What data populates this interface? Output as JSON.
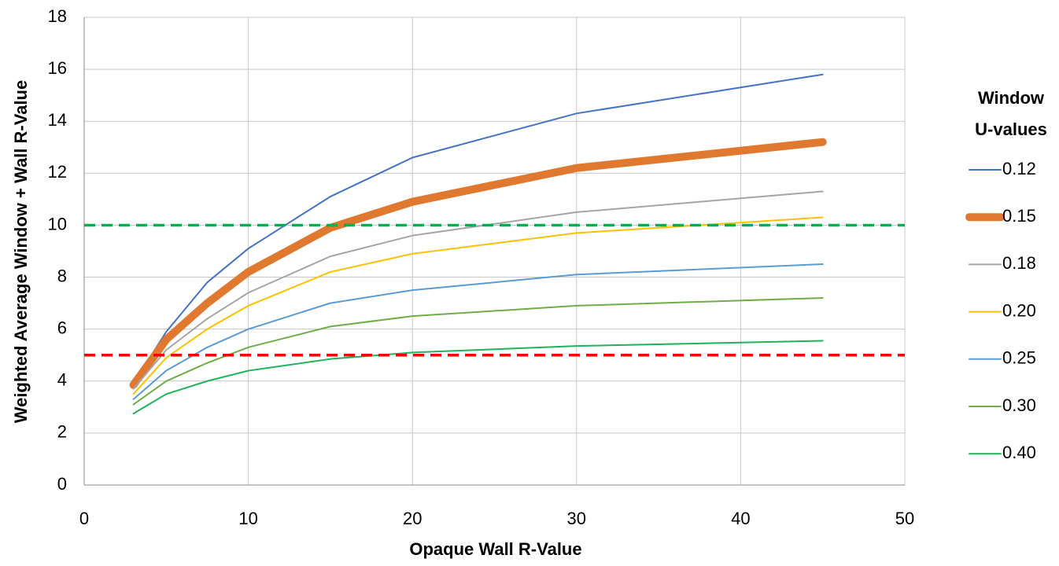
{
  "chart_data": {
    "type": "line",
    "x_label": "Opaque Wall R-Value",
    "y_label": "Weighted Average Window + Wall R-Value",
    "legend_title": [
      "Window",
      "U-values"
    ],
    "legend": "right",
    "grid": true,
    "x": [
      3,
      5,
      7.5,
      10,
      15,
      20,
      30,
      45
    ],
    "xlim": [
      0,
      50
    ],
    "xticks": [
      0,
      10,
      20,
      30,
      40,
      50
    ],
    "ylim": [
      0,
      18
    ],
    "yticks": [
      0,
      2,
      4,
      6,
      8,
      10,
      12,
      14,
      16,
      18
    ],
    "reference_lines": [
      {
        "value": 10,
        "color": "#00b050"
      },
      {
        "value": 5,
        "color": "#ff0000"
      }
    ],
    "series": [
      {
        "name": "0.12",
        "color": "#4472c4",
        "width": 2,
        "values": [
          3.9,
          5.9,
          7.8,
          9.1,
          11.1,
          12.6,
          14.3,
          15.8
        ]
      },
      {
        "name": "0.15",
        "color": "#e0782f",
        "width": 10,
        "values": [
          3.85,
          5.6,
          7.0,
          8.2,
          9.9,
          10.9,
          12.2,
          13.2
        ]
      },
      {
        "name": "0.18",
        "color": "#a5a5a5",
        "width": 2,
        "values": [
          3.7,
          5.2,
          6.4,
          7.4,
          8.8,
          9.6,
          10.5,
          11.3
        ]
      },
      {
        "name": "0.20",
        "color": "#ffc000",
        "width": 2,
        "values": [
          3.5,
          4.9,
          6.0,
          6.9,
          8.2,
          8.9,
          9.7,
          10.3
        ]
      },
      {
        "name": "0.25",
        "color": "#5b9bd5",
        "width": 2,
        "values": [
          3.3,
          4.4,
          5.3,
          6.0,
          7.0,
          7.5,
          8.1,
          8.5
        ]
      },
      {
        "name": "0.30",
        "color": "#70ad47",
        "width": 2,
        "values": [
          3.1,
          4.0,
          4.7,
          5.3,
          6.1,
          6.5,
          6.9,
          7.2
        ]
      },
      {
        "name": "0.40",
        "color": "#1fb25a",
        "width": 2,
        "values": [
          2.75,
          3.5,
          4.0,
          4.4,
          4.85,
          5.1,
          5.35,
          5.55
        ]
      }
    ]
  }
}
